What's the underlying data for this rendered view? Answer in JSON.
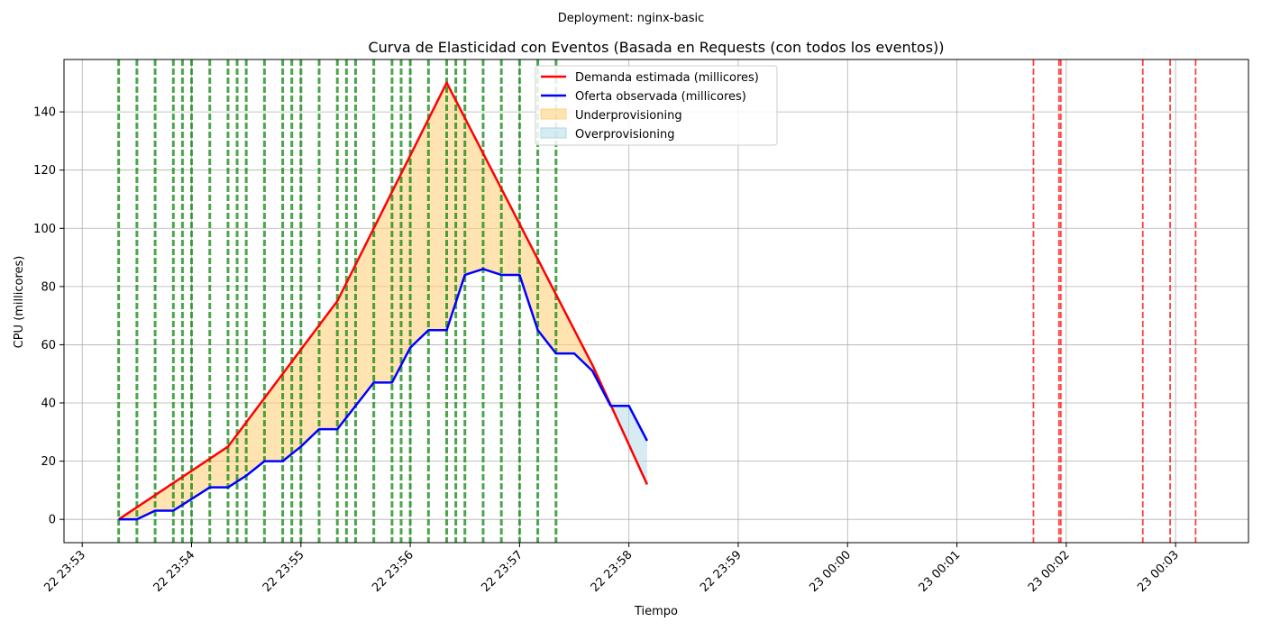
{
  "suptitle": "Deployment: nginx-basic",
  "chart_data": {
    "type": "line",
    "title": "Curva de Elasticidad con Eventos (Basada en Requests (con todos los eventos))",
    "xlabel": "Tiempo",
    "ylabel": "CPU (millicores)",
    "x_range": [
      "22 23:52:50",
      "23 00:03:40"
    ],
    "ylim": [
      -8,
      158
    ],
    "grid": true,
    "legend_position": "upper-center",
    "x_ticks": [
      "22 23:53",
      "22 23:54",
      "22 23:55",
      "22 23:56",
      "22 23:57",
      "22 23:58",
      "22 23:59",
      "23 00:00",
      "23 00:01",
      "23 00:02",
      "23 00:03"
    ],
    "y_ticks": [
      "0",
      "20",
      "40",
      "60",
      "80",
      "100",
      "120",
      "140"
    ],
    "legend": [
      "Demanda estimada (millicores)",
      "Oferta observada (millicores)",
      "Underprovisioning",
      "Overprovisioning"
    ],
    "colors": {
      "demand": "#ff0000",
      "supply": "#0000ff",
      "under_fill": "#ffd27f",
      "over_fill": "#add8e6",
      "green_event": "#008000",
      "red_event": "#ff0000",
      "grid": "#b0b0b0"
    },
    "series": [
      {
        "name": "Demanda estimada (millicores)",
        "points": [
          [
            "22 23:53:20",
            0
          ],
          [
            "22 23:54:20",
            25
          ],
          [
            "22 23:55:20",
            75
          ],
          [
            "22 23:56:20",
            150
          ],
          [
            "22 23:57:40",
            53
          ],
          [
            "22 23:58:10",
            12
          ]
        ]
      },
      {
        "name": "Oferta observada (millicores)",
        "points": [
          [
            "22 23:53:20",
            0
          ],
          [
            "22 23:53:30",
            0
          ],
          [
            "22 23:53:40",
            3
          ],
          [
            "22 23:53:50",
            3
          ],
          [
            "22 23:54:00",
            7
          ],
          [
            "22 23:54:10",
            11
          ],
          [
            "22 23:54:20",
            11
          ],
          [
            "22 23:54:30",
            15
          ],
          [
            "22 23:54:40",
            20
          ],
          [
            "22 23:54:50",
            20
          ],
          [
            "22 23:55:00",
            25
          ],
          [
            "22 23:55:10",
            31
          ],
          [
            "22 23:55:20",
            31
          ],
          [
            "22 23:55:30",
            39
          ],
          [
            "22 23:55:40",
            47
          ],
          [
            "22 23:55:50",
            47
          ],
          [
            "22 23:56:00",
            59
          ],
          [
            "22 23:56:10",
            65
          ],
          [
            "22 23:56:20",
            65
          ],
          [
            "22 23:56:30",
            84
          ],
          [
            "22 23:56:40",
            86
          ],
          [
            "22 23:56:50",
            84
          ],
          [
            "22 23:57:00",
            84
          ],
          [
            "22 23:57:10",
            65
          ],
          [
            "22 23:57:20",
            57
          ],
          [
            "22 23:57:30",
            57
          ],
          [
            "22 23:57:40",
            51
          ],
          [
            "22 23:57:50",
            39
          ],
          [
            "22 23:58:00",
            39
          ],
          [
            "22 23:58:10",
            27
          ]
        ]
      }
    ],
    "green_events": [
      "22 23:53:20",
      "22 23:53:30",
      "22 23:53:40",
      "22 23:53:50",
      "22 23:53:55",
      "22 23:54:00",
      "22 23:54:10",
      "22 23:54:20",
      "22 23:54:25",
      "22 23:54:30",
      "22 23:54:40",
      "22 23:54:50",
      "22 23:54:55",
      "22 23:55:00",
      "22 23:55:10",
      "22 23:55:20",
      "22 23:55:25",
      "22 23:55:30",
      "22 23:55:40",
      "22 23:55:50",
      "22 23:55:55",
      "22 23:56:00",
      "22 23:56:10",
      "22 23:56:20",
      "22 23:56:25",
      "22 23:56:30",
      "22 23:56:40",
      "22 23:56:50",
      "22 23:57:00",
      "22 23:57:10",
      "22 23:57:20"
    ],
    "red_events": [
      "23 00:01:42",
      "23 00:01:56",
      "23 00:01:57",
      "23 00:02:42",
      "23 00:02:57",
      "23 00:03:11"
    ]
  }
}
